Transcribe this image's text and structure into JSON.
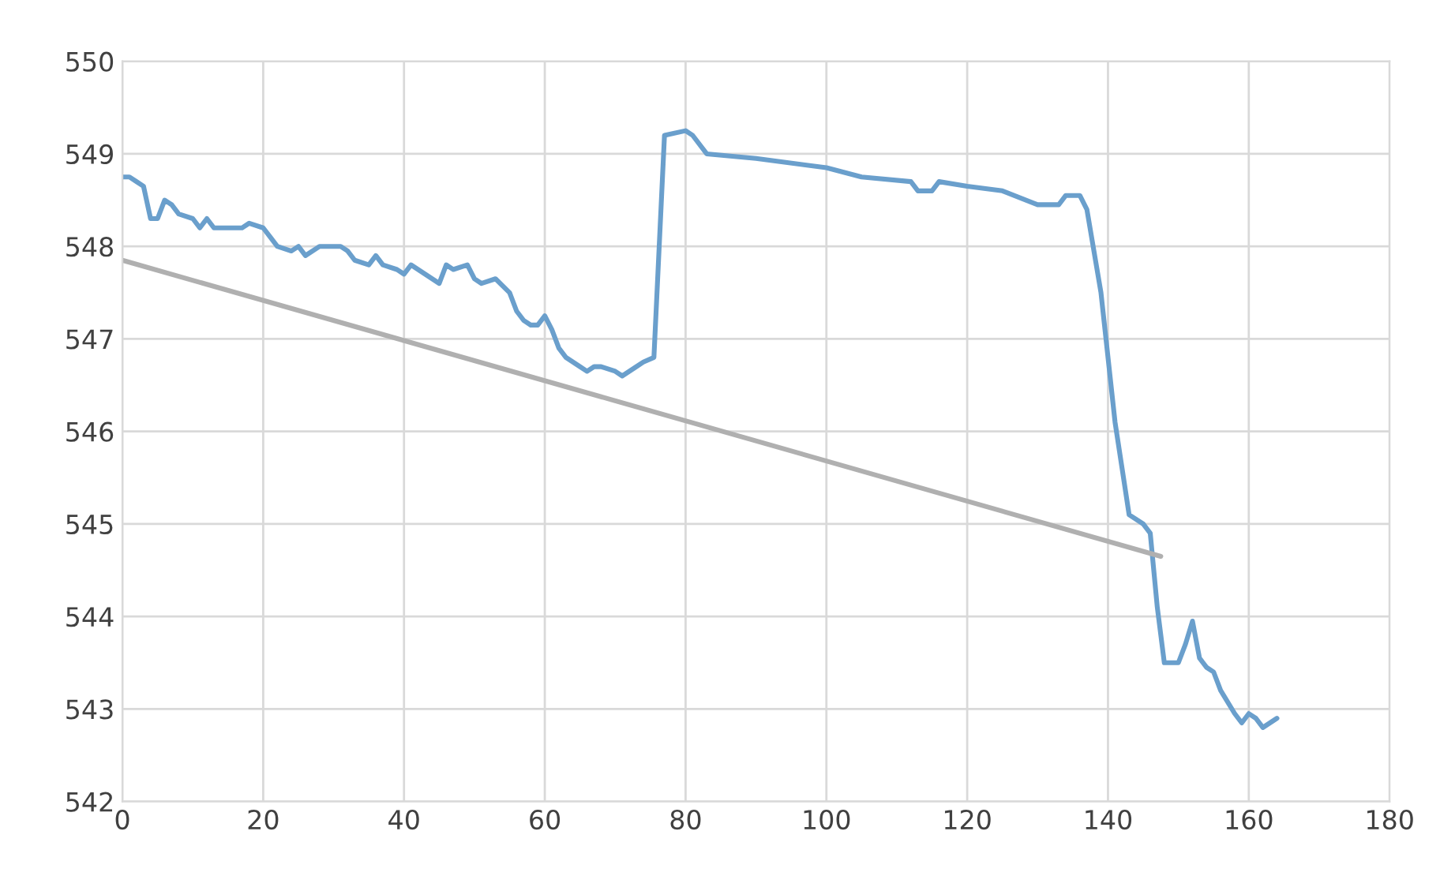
{
  "chart_data": {
    "type": "line",
    "xlim": [
      0,
      180
    ],
    "ylim": [
      542,
      550
    ],
    "xticks": [
      0,
      20,
      40,
      60,
      80,
      100,
      120,
      140,
      160,
      180
    ],
    "yticks": [
      542,
      543,
      544,
      545,
      546,
      547,
      548,
      549,
      550
    ],
    "grid": true,
    "marker": "none",
    "line_style": "solid",
    "series": [
      {
        "color": "#6a9fcc",
        "x": [
          0,
          1,
          2,
          3,
          4,
          5,
          6,
          7,
          8,
          10,
          11,
          12,
          13,
          15,
          17,
          18,
          20,
          21,
          22,
          24,
          25,
          26,
          28,
          31,
          32,
          33,
          35,
          36,
          37,
          39,
          40,
          41,
          43,
          45,
          46,
          47,
          49,
          50,
          51,
          53,
          55,
          56,
          57,
          58,
          59,
          60,
          61,
          62,
          63,
          65,
          66,
          67,
          68,
          70,
          71,
          73,
          74,
          75.5,
          77,
          80,
          81,
          83,
          90,
          100,
          105,
          112,
          113,
          115,
          116,
          120,
          125,
          130,
          133,
          134,
          136,
          137,
          139,
          141,
          142,
          143,
          145,
          146,
          147,
          148,
          150,
          151,
          152,
          153,
          154,
          155,
          156,
          158,
          159,
          160,
          161,
          162,
          164
        ],
        "values": [
          548.75,
          548.75,
          548.7,
          548.65,
          548.3,
          548.3,
          548.5,
          548.45,
          548.35,
          548.3,
          548.2,
          548.3,
          548.2,
          548.2,
          548.2,
          548.25,
          548.2,
          548.1,
          548.0,
          547.95,
          548.0,
          547.9,
          548.0,
          548.0,
          547.95,
          547.85,
          547.8,
          547.9,
          547.8,
          547.75,
          547.7,
          547.8,
          547.7,
          547.6,
          547.8,
          547.75,
          547.8,
          547.65,
          547.6,
          547.65,
          547.5,
          547.3,
          547.2,
          547.15,
          547.15,
          547.25,
          547.1,
          546.9,
          546.8,
          546.7,
          546.65,
          546.7,
          546.7,
          546.65,
          546.6,
          546.7,
          546.75,
          546.8,
          549.2,
          549.25,
          549.2,
          549.0,
          548.95,
          548.85,
          548.75,
          548.7,
          548.6,
          548.6,
          548.7,
          548.65,
          548.6,
          548.45,
          548.45,
          548.55,
          548.55,
          548.4,
          547.5,
          546.1,
          545.6,
          545.1,
          545.0,
          544.9,
          544.1,
          543.5,
          543.5,
          543.7,
          543.95,
          543.55,
          543.45,
          543.4,
          543.2,
          542.95,
          542.85,
          542.95,
          542.9,
          542.8,
          542.9
        ]
      },
      {
        "color": "#b0b0b0",
        "x": [
          0,
          147.5
        ],
        "values": [
          547.85,
          544.65
        ]
      }
    ]
  }
}
